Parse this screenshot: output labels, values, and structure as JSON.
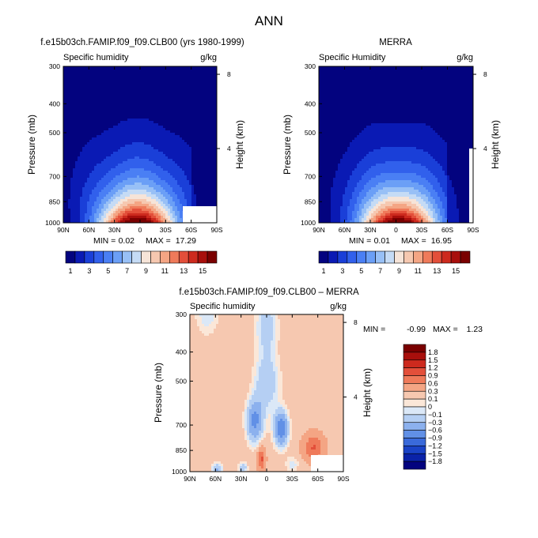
{
  "figure": {
    "title": "ANN"
  },
  "chart_data": [
    {
      "type": "heatmap",
      "plot_kind": "filled-contour latitude-pressure cross section",
      "title": "f.e15b03ch.FAMIP.f09_f09.CLB00 (yrs 1980-1999)",
      "variable": "Specific humidity",
      "units": "g/kg",
      "ylabel": "Pressure (mb)",
      "ylabel_right": "Height (km)",
      "x_ticks": [
        "90N",
        "60N",
        "30N",
        "0",
        "30S",
        "60S",
        "90S"
      ],
      "y_ticks": [
        "300",
        "400",
        "500",
        "700",
        "850",
        "1000"
      ],
      "y_ticks_right": [
        "8",
        "4"
      ],
      "xlim": [
        90,
        -90
      ],
      "ylim": [
        1000,
        300
      ],
      "y_scale": "log",
      "min_label": "MIN =",
      "min_value": "0.02",
      "max_label": "MAX =",
      "max_value": "17.29",
      "contour_levels": [
        1,
        2,
        3,
        4,
        5,
        6,
        7,
        8,
        9,
        10,
        11,
        12,
        13,
        14,
        15,
        16
      ],
      "peak_lat": 0,
      "peak_value": 17.29
    },
    {
      "type": "heatmap",
      "plot_kind": "filled-contour latitude-pressure cross section",
      "title": "MERRA",
      "variable": "Specific Humidity",
      "units": "g/kg",
      "ylabel": "Pressure (mb)",
      "ylabel_right": "Height (km)",
      "x_ticks": [
        "90N",
        "60N",
        "30N",
        "0",
        "30S",
        "60S",
        "90S"
      ],
      "y_ticks": [
        "300",
        "400",
        "500",
        "700",
        "850",
        "1000"
      ],
      "y_ticks_right": [
        "8",
        "4"
      ],
      "xlim": [
        90,
        -90
      ],
      "ylim": [
        1000,
        300
      ],
      "y_scale": "log",
      "min_label": "MIN =",
      "min_value": "0.01",
      "max_label": "MAX =",
      "max_value": "16.95",
      "contour_levels": [
        1,
        2,
        3,
        4,
        5,
        6,
        7,
        8,
        9,
        10,
        11,
        12,
        13,
        14,
        15,
        16
      ],
      "peak_lat": 0,
      "peak_value": 16.95
    },
    {
      "type": "heatmap",
      "plot_kind": "filled-contour latitude-pressure difference",
      "title": "f.e15b03ch.FAMIP.f09_f09.CLB00 – MERRA",
      "variable": "Specific humidity",
      "units": "g/kg",
      "ylabel": "Pressure (mb)",
      "ylabel_right": "Height (km)",
      "x_ticks": [
        "90N",
        "60N",
        "30N",
        "0",
        "30S",
        "60S",
        "90S"
      ],
      "y_ticks": [
        "300",
        "400",
        "500",
        "700",
        "850",
        "1000"
      ],
      "y_ticks_right": [
        "8",
        "4"
      ],
      "xlim": [
        90,
        -90
      ],
      "ylim": [
        1000,
        300
      ],
      "y_scale": "log",
      "min_label": "MIN =",
      "min_value": "-0.99",
      "max_label": "MAX =",
      "max_value": "1.23",
      "contour_levels": [
        -1.8,
        -1.5,
        -1.2,
        -0.9,
        -0.6,
        -0.3,
        -0.1,
        0,
        0.1,
        0.3,
        0.6,
        0.9,
        1.2,
        1.5,
        1.8
      ]
    }
  ],
  "colorbars": {
    "top": {
      "orientation": "horizontal",
      "labels": [
        "1",
        "3",
        "5",
        "7",
        "9",
        "11",
        "13",
        "15"
      ],
      "colors": [
        "#03037f",
        "#0a1ab4",
        "#1a3fd8",
        "#3160ec",
        "#4a7ff4",
        "#6b9ff6",
        "#98c0f6",
        "#c5dbf5",
        "#f6e4d8",
        "#f6c8b0",
        "#f4a584",
        "#ef7a5a",
        "#e34f3a",
        "#cd2a1e",
        "#a80f0c",
        "#7a0000"
      ]
    },
    "diff": {
      "orientation": "vertical",
      "labels": [
        "1.8",
        "1.5",
        "1.2",
        "0.9",
        "0.6",
        "0.3",
        "0.1",
        "0",
        "−0.1",
        "−0.3",
        "−0.6",
        "−0.9",
        "−1.2",
        "−1.5",
        "−1.8"
      ],
      "colors": [
        "#7a0000",
        "#a80f0c",
        "#cd2a1e",
        "#e34f3a",
        "#ef7a5a",
        "#f4a584",
        "#f6c8b0",
        "#fbe7d8",
        "#dbe8f7",
        "#b5cff3",
        "#8cb1ee",
        "#6190e6",
        "#3a6ada",
        "#1a43c6",
        "#0a22a8",
        "#03037f"
      ]
    }
  }
}
